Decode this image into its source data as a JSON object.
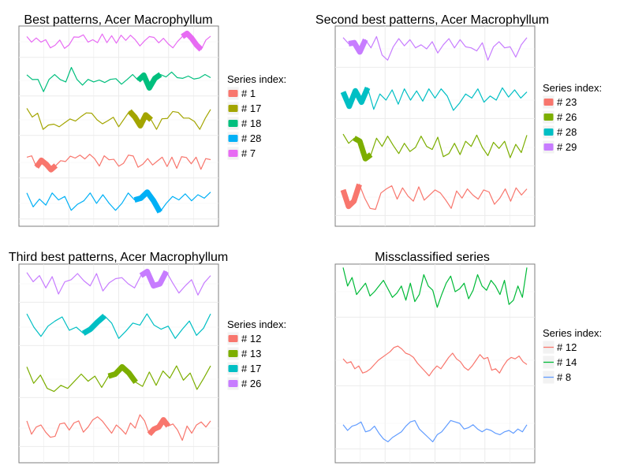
{
  "chart_data": [
    {
      "type": "line",
      "title": "Best patterns, Acer Macrophyllum",
      "legend_title": "Series index:",
      "legend_position": "right",
      "grid": true,
      "xlabel": "",
      "ylabel": "",
      "series": [
        {
          "name": "# 1",
          "color": "#f8766d",
          "values": [
            0.3,
            0.38,
            -0.27,
            0.12,
            -0.1,
            -0.42,
            -0.18,
            0.1,
            0.05,
            0.36,
            0.25,
            0.42,
            0.2,
            0.47,
            0.22,
            -0.21,
            0.38,
            0.15,
            0.18,
            -0.22,
            -0.05,
            0.42,
            0.37,
            -0.28,
            -0.1,
            0.22,
            -0.15,
            0.08,
            0.3,
            -0.24,
            0.3,
            -0.34,
            0.33,
            0.28,
            -0.08,
            0.3,
            -0.4,
            0.22,
            0.16
          ],
          "highlight": [
            2,
            6
          ]
        },
        {
          "name": "# 17",
          "color": "#a3a500",
          "values": [
            0.66,
            0.16,
            0.38,
            -0.55,
            -0.3,
            -0.25,
            -0.4,
            -0.17,
            0.05,
            -0.07,
            0.18,
            0.4,
            0.38,
            0.0,
            -0.23,
            -0.05,
            0.15,
            -0.4,
            0.05,
            0.5,
            0.16,
            -0.34,
            0.28,
            0.0,
            -0.55,
            0.06,
            0.08,
            0.48,
            0.43,
            0.1,
            0.1,
            -0.09,
            -0.55,
            0.08,
            0.6
          ],
          "highlight": [
            19,
            23
          ]
        },
        {
          "name": "# 18",
          "color": "#00bf7d",
          "values": [
            0.32,
            0.05,
            0.06,
            -0.65,
            0.06,
            0.34,
            0.05,
            -0.09,
            0.75,
            0.06,
            -0.27,
            0.06,
            -0.09,
            0.02,
            -0.12,
            0.06,
            0.1,
            -0.22,
            0.05,
            0.34,
            0.0,
            0.3,
            -0.43,
            0.12,
            0.34,
            0.2,
            0.48,
            0.16,
            0.12,
            0.25,
            0.08,
            0.14,
            0.34,
            0.16
          ],
          "highlight": [
            20,
            24
          ]
        },
        {
          "name": "# 28",
          "color": "#00b0f6",
          "values": [
            0.6,
            -0.2,
            0.25,
            -0.1,
            0.6,
            0.2,
            0.4,
            -0.4,
            -0.05,
            0.15,
            0.6,
            0.0,
            0.5,
            0.0,
            -0.4,
            0.0,
            0.6,
            0.2,
            0.3,
            0.65,
            0.15,
            -0.5,
            0.0,
            0.4,
            0.2,
            0.55,
            0.15,
            0.5,
            0.3,
            0.65
          ],
          "highlight": [
            17,
            21
          ]
        },
        {
          "name": "# 7",
          "color": "#e76bf3",
          "values": [
            0.3,
            -0.02,
            0.22,
            -0.02,
            0.12,
            -0.35,
            -0.2,
            0.1,
            -0.38,
            -0.17,
            0.28,
            0.26,
            0.4,
            -0.02,
            0.12,
            -0.05,
            0.45,
            -0.05,
            0.35,
            -0.08,
            0.38,
            0.08,
            0.38,
            0.12,
            -0.24,
            0.06,
            0.3,
            0.25,
            -0.06,
            0.2,
            -0.12,
            -0.35,
            0.02,
            0.3,
            0.48,
            0.2,
            -0.18,
            -0.45,
            0.1,
            0.32
          ],
          "highlight": [
            33,
            37
          ]
        }
      ]
    },
    {
      "type": "line",
      "title": "Second best patterns, Acer Macrophyllum",
      "legend_title": "Series index:",
      "legend_position": "right",
      "grid": true,
      "xlabel": "",
      "ylabel": "",
      "series": [
        {
          "name": "# 23",
          "color": "#f8766d",
          "values": [
            0.35,
            -0.45,
            -0.2,
            0.62,
            -0.05,
            -0.55,
            -0.6,
            0.2,
            0.4,
            0.55,
            -0.1,
            0.45,
            0.05,
            -0.2,
            0.5,
            -0.15,
            0.1,
            0.35,
            0.2,
            -0.15,
            -0.55,
            0.3,
            -0.05,
            0.4,
            0.1,
            -0.1,
            0.35,
            0.25,
            -0.35,
            -0.05,
            0.4,
            -0.2,
            0.45,
            0.1,
            0.4
          ],
          "highlight": [
            0,
            3
          ]
        },
        {
          "name": "# 26",
          "color": "#7cae00",
          "values": [
            0.65,
            0.2,
            0.45,
            0.3,
            -0.55,
            -0.35,
            0.45,
            0.05,
            0.55,
            0.1,
            -0.3,
            0.2,
            -0.2,
            0.0,
            0.55,
            0.05,
            -0.1,
            0.5,
            -0.45,
            -0.3,
            0.2,
            -0.35,
            0.3,
            0.05,
            0.6,
            0.0,
            -0.4,
            0.25,
            -0.05,
            0.3,
            -0.5,
            0.15,
            -0.25,
            0.6
          ],
          "highlight": [
            2,
            5
          ]
        },
        {
          "name": "# 28",
          "color": "#00bfc4",
          "values": [
            0.4,
            -0.3,
            0.45,
            -0.1,
            0.6,
            -0.45,
            0.3,
            0.0,
            0.5,
            -0.2,
            0.55,
            0.0,
            0.45,
            -0.05,
            0.55,
            0.1,
            0.55,
            0.2,
            -0.5,
            -0.15,
            0.3,
            0.1,
            0.55,
            -0.1,
            0.2,
            0.0,
            0.6,
            0.15,
            0.5,
            0.1,
            0.4
          ],
          "highlight": [
            0,
            4
          ]
        },
        {
          "name": "# 29",
          "color": "#c77cff",
          "values": [
            0.55,
            0.25,
            0.3,
            -0.15,
            0.45,
            0.05,
            0.6,
            -0.3,
            -0.55,
            0.1,
            0.5,
            0.15,
            0.45,
            0.05,
            0.2,
            0.0,
            0.35,
            -0.2,
            0.2,
            0.5,
            0.05,
            0.45,
            0.1,
            0.05,
            -0.1,
            0.3,
            -0.55,
            0.1,
            0.35,
            0.05,
            0.1,
            -0.4,
            0.2,
            0.55
          ],
          "highlight": [
            1,
            4
          ]
        }
      ]
    },
    {
      "type": "line",
      "title": "Third best patterns, Acer Macrophyllum",
      "legend_title": "Series index:",
      "legend_position": "right",
      "grid": true,
      "xlabel": "",
      "ylabel": "",
      "series": [
        {
          "name": "# 12",
          "color": "#f8766d",
          "values": [
            0.35,
            -0.3,
            0.05,
            0.15,
            -0.2,
            -0.45,
            -0.4,
            0.2,
            0.25,
            -0.1,
            0.25,
            0.35,
            -0.2,
            0.05,
            0.4,
            0.55,
            0.35,
            0.05,
            -0.25,
            0.15,
            -0.05,
            -0.3,
            0.25,
            0.0,
            0.65,
            0.35,
            -0.3,
            -0.05,
            0.05,
            0.4,
            0.1,
            0.2,
            -0.1,
            -0.6,
            0.1,
            -0.25,
            0.15,
            0.3,
            0.05,
            0.35
          ],
          "highlight": [
            26,
            30
          ]
        },
        {
          "name": "# 13",
          "color": "#7cae00",
          "values": [
            0.6,
            -0.2,
            0.2,
            -0.45,
            -0.6,
            -0.3,
            -0.45,
            -0.1,
            0.25,
            -0.1,
            0.15,
            -0.4,
            0.15,
            0.25,
            0.6,
            0.3,
            -0.15,
            -0.35,
            0.35,
            -0.3,
            0.4,
            0.05,
            0.65,
            -0.05,
            0.3,
            -0.5,
            0.05,
            0.65
          ],
          "highlight": [
            12,
            16
          ]
        },
        {
          "name": "# 17",
          "color": "#00bfc4",
          "values": [
            0.65,
            0.0,
            -0.45,
            0.05,
            0.3,
            0.5,
            -0.15,
            0.0,
            -0.3,
            -0.1,
            0.25,
            0.55,
            0.2,
            -0.55,
            -0.2,
            0.2,
            0.1,
            0.65,
            0.1,
            -0.1,
            0.05,
            -0.55,
            -0.1,
            0.3,
            -0.4,
            -0.05,
            0.65
          ],
          "highlight": [
            8,
            11
          ]
        },
        {
          "name": "# 26",
          "color": "#c77cff",
          "values": [
            0.55,
            0.1,
            0.4,
            -0.2,
            0.35,
            -0.5,
            0.1,
            0.2,
            0.5,
            0.15,
            -0.1,
            0.5,
            -0.35,
            0.05,
            0.25,
            0.3,
            0.0,
            -0.2,
            0.4,
            0.6,
            -0.1,
            0.0,
            0.6,
            0.05,
            -0.45,
            -0.1,
            0.2,
            -0.55,
            0.05,
            0.4
          ],
          "highlight": [
            18,
            22
          ]
        }
      ]
    },
    {
      "type": "line",
      "title": "Missclassified series",
      "legend_title": "Series index:",
      "legend_position": "right",
      "grid": true,
      "xlabel": "",
      "ylabel": "",
      "series": [
        {
          "name": "# 12",
          "color": "#f8766d",
          "values": [
            0.05,
            -0.1,
            -0.05,
            -0.3,
            -0.2,
            -0.45,
            -0.4,
            -0.3,
            -0.15,
            0.0,
            0.1,
            0.2,
            0.3,
            0.45,
            0.5,
            0.4,
            0.25,
            0.2,
            0.1,
            -0.1,
            -0.25,
            -0.4,
            -0.55,
            -0.35,
            -0.2,
            -0.3,
            -0.1,
            0.1,
            0.25,
            0.05,
            -0.05,
            -0.25,
            -0.35,
            -0.2,
            0.0,
            0.2,
            0.05,
            0.1,
            -0.35,
            -0.3,
            -0.45,
            -0.2,
            0.0,
            0.1,
            0.05,
            0.15,
            -0.05,
            -0.15
          ],
          "highlight": []
        },
        {
          "name": "# 14",
          "color": "#00ba38",
          "values": [
            0.85,
            0.2,
            0.5,
            -0.1,
            0.1,
            0.3,
            -0.15,
            0.0,
            0.2,
            0.4,
            0.1,
            -0.2,
            -0.05,
            0.2,
            -0.3,
            0.3,
            -0.35,
            -0.1,
            0.6,
            0.2,
            0.05,
            -0.55,
            -0.1,
            0.3,
            0.55,
            0.0,
            0.1,
            0.3,
            -0.25,
            0.05,
            0.6,
            0.2,
            0.05,
            0.4,
            0.2,
            -0.1,
            0.4,
            -0.45,
            -0.3,
            0.2,
            -0.2,
            0.85
          ],
          "highlight": []
        },
        {
          "name": "# 8",
          "color": "#619cff",
          "values": [
            -0.05,
            -0.25,
            -0.1,
            -0.05,
            0.05,
            -0.3,
            -0.25,
            -0.1,
            -0.35,
            -0.55,
            -0.65,
            -0.5,
            -0.4,
            -0.3,
            -0.1,
            0.05,
            0.1,
            -0.2,
            -0.35,
            -0.5,
            -0.65,
            -0.4,
            -0.3,
            -0.1,
            0.1,
            0.05,
            0.0,
            -0.2,
            -0.15,
            -0.05,
            -0.2,
            -0.3,
            -0.2,
            -0.25,
            -0.35,
            -0.4,
            -0.3,
            -0.25,
            -0.35,
            -0.2,
            -0.3,
            -0.05
          ],
          "highlight": []
        }
      ]
    }
  ]
}
